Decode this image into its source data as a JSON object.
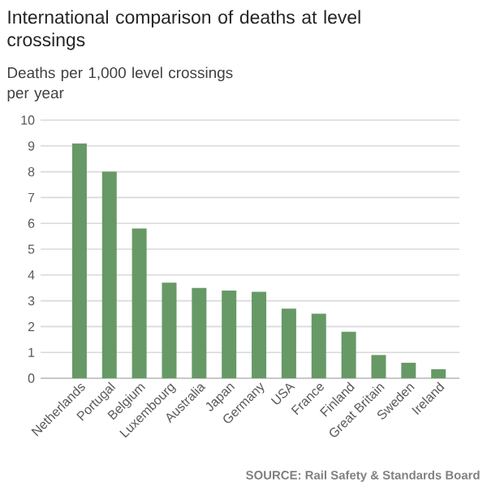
{
  "chart_data": {
    "type": "bar",
    "title": "International comparison of deaths at level crossings",
    "ylabel": "Deaths per 1,000 level crossings per year",
    "categories": [
      "Netherlands",
      "Portugal",
      "Belgium",
      "Luxembourg",
      "Australia",
      "Japan",
      "Germany",
      "USA",
      "France",
      "Finland",
      "Great Britain",
      "Sweden",
      "Ireland"
    ],
    "values": [
      9.1,
      8.0,
      5.8,
      3.7,
      3.5,
      3.4,
      3.35,
      2.7,
      2.5,
      1.8,
      0.9,
      0.6,
      0.35
    ],
    "color": "#669966",
    "ylim": [
      0,
      10
    ],
    "yticks": [
      0,
      1,
      2,
      3,
      4,
      5,
      6,
      7,
      8,
      9,
      10
    ],
    "grid": "y",
    "annotations": [
      "SOURCE: Rail Safety & Standards Board"
    ]
  }
}
